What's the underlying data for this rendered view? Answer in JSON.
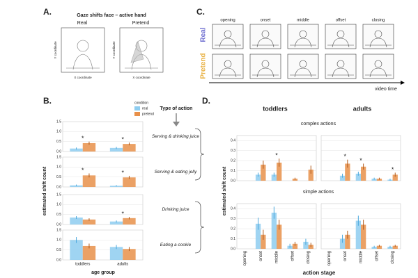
{
  "panel_a": {
    "letter": "A.",
    "title": "Gaze shifts face – active hand",
    "plots": [
      "Real",
      "Pretend"
    ],
    "ylabel": "Y coordinate",
    "xlabel": "X coordinate"
  },
  "panel_c": {
    "letter": "C.",
    "stages": [
      "opening",
      "onset",
      "middle",
      "offset",
      "closing"
    ],
    "rows": [
      "Real",
      "Pretend"
    ],
    "axis_label": "video time"
  },
  "chart_data": [
    {
      "type": "bar",
      "letter": "B.",
      "ylabel": "estimated shift count",
      "xlabel": "age group",
      "legend_title": "condition",
      "side_title": "Type of action",
      "categories": [
        "toddlers",
        "adults"
      ],
      "series": [
        {
          "name": "real",
          "color": "#8ecdf0"
        },
        {
          "name": "pretend",
          "color": "#e8904a"
        }
      ],
      "ylim": [
        0,
        1.5
      ],
      "yticks": [
        {
          "value": 0,
          "label": "0.0"
        },
        0.5,
        {
          "value": 1,
          "label": "1.0"
        },
        1.5
      ],
      "facets": [
        {
          "label": "Serving & drinking juice",
          "values": [
            [
              0.15,
              0.18
            ],
            [
              0.42,
              0.38
            ]
          ],
          "errors": [
            [
              0.05,
              0.05
            ],
            [
              0.08,
              0.07
            ]
          ],
          "annotations": [
            {
              "x": "toddlers",
              "text": "*"
            },
            {
              "x": "adults",
              "text": "*"
            }
          ]
        },
        {
          "label": "Serving & eating jelly",
          "values": [
            [
              0.08,
              0.06
            ],
            [
              0.58,
              0.48
            ]
          ],
          "errors": [
            [
              0.04,
              0.03
            ],
            [
              0.1,
              0.08
            ]
          ],
          "annotations": [
            {
              "x": "toddlers",
              "text": "*"
            },
            {
              "x": "adults",
              "text": "*"
            }
          ]
        },
        {
          "label": "Drinking juice",
          "values": [
            [
              0.35,
              0.15
            ],
            [
              0.25,
              0.32
            ]
          ],
          "errors": [
            [
              0.07,
              0.05
            ],
            [
              0.06,
              0.06
            ]
          ],
          "annotations": [
            {
              "x": "adults",
              "text": "*"
            }
          ]
        },
        {
          "label": "Eating a cookie",
          "values": [
            [
              1.0,
              0.65
            ],
            [
              0.7,
              0.55
            ]
          ],
          "errors": [
            [
              0.15,
              0.1
            ],
            [
              0.12,
              0.1
            ]
          ],
          "annotations": []
        }
      ],
      "brace_groups": [
        [
          0,
          1
        ],
        [
          2,
          3
        ]
      ]
    },
    {
      "type": "bar",
      "letter": "D.",
      "ylabel": "estimated shift count",
      "xlabel": "action stage",
      "columns": [
        "toddlers",
        "adults"
      ],
      "rows": [
        "complex actions",
        "simple actions"
      ],
      "categories": [
        "opening",
        "onset",
        "middle",
        "offset",
        "closing"
      ],
      "series": [
        {
          "color": "#8ecdf0"
        },
        {
          "color": "#e8904a"
        }
      ],
      "ylim": [
        0,
        0.45
      ],
      "yticks": [
        {
          "value": 0,
          "label": "0.0"
        },
        0.1,
        0.2,
        0.3,
        0.4
      ],
      "facets": [
        {
          "values": [
            [
              0,
              0.06,
              0.06,
              0,
              0
            ],
            [
              0,
              0.16,
              0.18,
              0.02,
              0.11
            ]
          ],
          "errors": [
            [
              0,
              0.02,
              0.02,
              0,
              0
            ],
            [
              0,
              0.04,
              0.04,
              0.01,
              0.04
            ]
          ],
          "annotations": [
            {
              "x": "middle",
              "text": "*"
            }
          ]
        },
        {
          "values": [
            [
              0,
              0.05,
              0.07,
              0.02,
              0.01
            ],
            [
              0,
              0.17,
              0.14,
              0.02,
              0.06
            ]
          ],
          "errors": [
            [
              0,
              0.02,
              0.02,
              0.01,
              0.01
            ],
            [
              0,
              0.04,
              0.03,
              0.01,
              0.02
            ]
          ],
          "annotations": [
            {
              "x": "onset",
              "text": "*"
            },
            {
              "x": "middle",
              "text": "*"
            },
            {
              "x": "closing",
              "text": "*"
            }
          ]
        },
        {
          "values": [
            [
              0,
              0.25,
              0.36,
              0.03,
              0.07
            ],
            [
              0,
              0.14,
              0.24,
              0.05,
              0.04
            ]
          ],
          "errors": [
            [
              0,
              0.06,
              0.06,
              0.02,
              0.03
            ],
            [
              0,
              0.05,
              0.05,
              0.02,
              0.02
            ]
          ],
          "annotations": []
        },
        {
          "values": [
            [
              0,
              0.1,
              0.28,
              0.02,
              0.02
            ],
            [
              0,
              0.14,
              0.24,
              0.03,
              0.03
            ]
          ],
          "errors": [
            [
              0,
              0.04,
              0.05,
              0.01,
              0.01
            ],
            [
              0,
              0.04,
              0.05,
              0.01,
              0.01
            ]
          ],
          "annotations": []
        }
      ]
    }
  ]
}
